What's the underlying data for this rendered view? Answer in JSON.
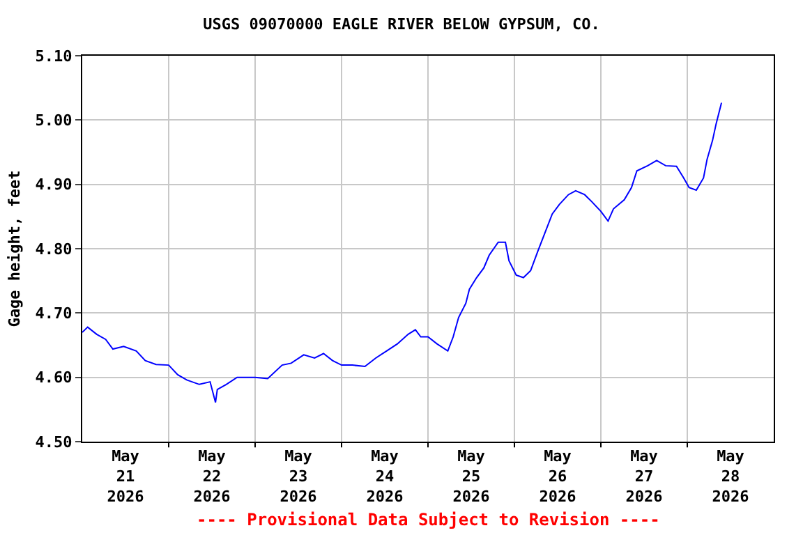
{
  "chart_data": {
    "type": "line",
    "title": "USGS 09070000 EAGLE RIVER BELOW GYPSUM, CO.",
    "ylabel": "Gage height, feet",
    "annotations": [
      "---- Provisional Data Subject to Revision ----"
    ],
    "x": [
      "2026-05-21T00:00",
      "2026-05-21T01:30",
      "2026-05-21T04:00",
      "2026-05-21T06:30",
      "2026-05-21T08:30",
      "2026-05-21T11:30",
      "2026-05-21T15:00",
      "2026-05-21T17:30",
      "2026-05-21T20:30",
      "2026-05-22T00:00",
      "2026-05-22T02:30",
      "2026-05-22T05:00",
      "2026-05-22T08:30",
      "2026-05-22T11:30",
      "2026-05-22T13:00",
      "2026-05-22T13:30",
      "2026-05-22T16:00",
      "2026-05-22T19:00",
      "2026-05-22T22:00",
      "2026-05-23T00:00",
      "2026-05-23T03:30",
      "2026-05-23T07:30",
      "2026-05-23T10:00",
      "2026-05-23T13:30",
      "2026-05-23T16:30",
      "2026-05-23T19:00",
      "2026-05-23T21:30",
      "2026-05-24T00:00",
      "2026-05-24T03:00",
      "2026-05-24T06:30",
      "2026-05-24T09:30",
      "2026-05-24T12:30",
      "2026-05-24T15:30",
      "2026-05-24T18:30",
      "2026-05-24T20:30",
      "2026-05-24T22:00",
      "2026-05-25T00:00",
      "2026-05-25T02:30",
      "2026-05-25T05:30",
      "2026-05-25T07:00",
      "2026-05-25T08:30",
      "2026-05-25T10:30",
      "2026-05-25T11:30",
      "2026-05-25T13:30",
      "2026-05-25T15:30",
      "2026-05-25T17:00",
      "2026-05-25T19:30",
      "2026-05-25T21:30",
      "2026-05-25T22:30",
      "2026-05-26T00:30",
      "2026-05-26T02:30",
      "2026-05-26T04:30",
      "2026-05-26T06:30",
      "2026-05-26T08:30",
      "2026-05-26T10:30",
      "2026-05-26T12:30",
      "2026-05-26T15:00",
      "2026-05-26T17:00",
      "2026-05-26T19:30",
      "2026-05-26T21:30",
      "2026-05-27T00:00",
      "2026-05-27T02:00",
      "2026-05-27T03:30",
      "2026-05-27T06:30",
      "2026-05-27T08:30",
      "2026-05-27T10:00",
      "2026-05-27T13:00",
      "2026-05-27T15:30",
      "2026-05-27T18:00",
      "2026-05-27T21:00",
      "2026-05-27T23:00",
      "2026-05-28T00:30",
      "2026-05-28T02:30",
      "2026-05-28T04:30",
      "2026-05-28T05:30",
      "2026-05-28T07:00",
      "2026-05-28T08:00",
      "2026-05-28T09:30"
    ],
    "series": [
      {
        "color": "#0000ff",
        "values": [
          4.67,
          4.678,
          4.667,
          4.659,
          4.644,
          4.648,
          4.641,
          4.626,
          4.62,
          4.619,
          4.604,
          4.596,
          4.589,
          4.593,
          4.561,
          4.581,
          4.589,
          4.6,
          4.6,
          4.6,
          4.598,
          4.619,
          4.622,
          4.635,
          4.63,
          4.637,
          4.626,
          4.619,
          4.619,
          4.617,
          4.63,
          4.641,
          4.652,
          4.667,
          4.674,
          4.663,
          4.663,
          4.652,
          4.641,
          4.663,
          4.693,
          4.715,
          4.737,
          4.755,
          4.77,
          4.79,
          4.81,
          4.81,
          4.781,
          4.759,
          4.755,
          4.766,
          4.796,
          4.825,
          4.854,
          4.869,
          4.884,
          4.89,
          4.884,
          4.873,
          4.858,
          4.843,
          4.862,
          4.876,
          4.895,
          4.921,
          4.929,
          4.937,
          4.929,
          4.928,
          4.91,
          4.895,
          4.891,
          4.91,
          4.939,
          4.968,
          4.994,
          5.027
        ]
      }
    ],
    "xlim": [
      "2026-05-21",
      "2026-05-29"
    ],
    "xticks": [
      {
        "value": "2026-05-21T12:00",
        "label": "May\n21\n2026"
      },
      {
        "value": "2026-05-22T12:00",
        "label": "May\n22\n2026"
      },
      {
        "value": "2026-05-23T12:00",
        "label": "May\n23\n2026"
      },
      {
        "value": "2026-05-24T12:00",
        "label": "May\n24\n2026"
      },
      {
        "value": "2026-05-25T12:00",
        "label": "May\n25\n2026"
      },
      {
        "value": "2026-05-26T12:00",
        "label": "May\n26\n2026"
      },
      {
        "value": "2026-05-27T12:00",
        "label": "May\n27\n2026"
      },
      {
        "value": "2026-05-28T12:00",
        "label": "May\n28\n2026"
      },
      {
        "value": "2026-05-22",
        "label": null
      },
      {
        "value": "2026-05-23",
        "label": null
      },
      {
        "value": "2026-05-24",
        "label": null
      },
      {
        "value": "2026-05-25",
        "label": null
      },
      {
        "value": "2026-05-26",
        "label": null
      },
      {
        "value": "2026-05-27",
        "label": null
      },
      {
        "value": "2026-05-28",
        "label": null
      }
    ],
    "ylim": [
      4.5,
      5.1
    ],
    "yticks": [
      {
        "value": 4.5,
        "label": "4.50"
      },
      {
        "value": 4.6,
        "label": "4.60"
      },
      {
        "value": 4.7,
        "label": "4.70"
      },
      {
        "value": 4.8,
        "label": "4.80"
      },
      {
        "value": 4.9,
        "label": "4.90"
      },
      {
        "value": 5.0,
        "label": "5.00"
      },
      {
        "value": 5.1,
        "label": "5.10"
      }
    ],
    "grid": true,
    "line_style": "solid",
    "marker": "none"
  }
}
